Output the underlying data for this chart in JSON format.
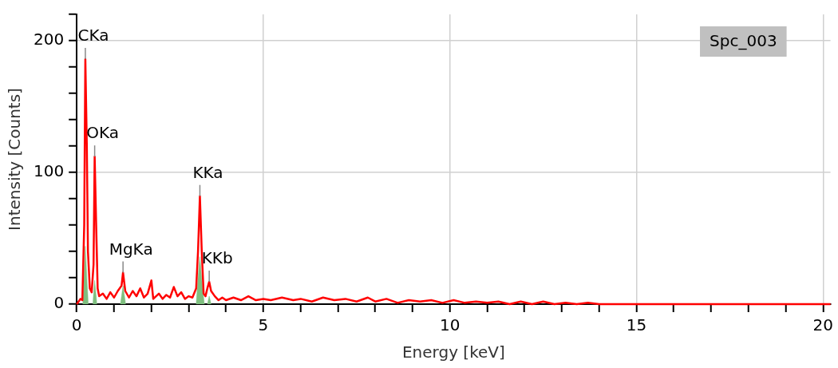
{
  "chart_data": {
    "type": "line",
    "xlabel": "Energy [keV]",
    "ylabel": "Intensity [Counts]",
    "xlim": [
      0,
      20.2
    ],
    "ylim": [
      0,
      220
    ],
    "xticks": [
      0,
      {
        "value": 1,
        "label": null
      },
      {
        "value": 2,
        "label": null
      },
      {
        "value": 3,
        "label": null
      },
      {
        "value": 4,
        "label": null
      },
      5,
      {
        "value": 6,
        "label": null
      },
      {
        "value": 7,
        "label": null
      },
      {
        "value": 8,
        "label": null
      },
      {
        "value": 9,
        "label": null
      },
      10,
      {
        "value": 11,
        "label": null
      },
      {
        "value": 12,
        "label": null
      },
      {
        "value": 13,
        "label": null
      },
      {
        "value": 14,
        "label": null
      },
      15,
      {
        "value": 16,
        "label": null
      },
      {
        "value": 17,
        "label": null
      },
      {
        "value": 18,
        "label": null
      },
      {
        "value": 19,
        "label": null
      },
      20
    ],
    "yticks": [
      0,
      {
        "value": 20,
        "label": null
      },
      {
        "value": 40,
        "label": null
      },
      {
        "value": 60,
        "label": null
      },
      {
        "value": 80,
        "label": null
      },
      100,
      {
        "value": 120,
        "label": null
      },
      {
        "value": 140,
        "label": null
      },
      {
        "value": 160,
        "label": null
      },
      {
        "value": 180,
        "label": null
      },
      200,
      {
        "value": 220,
        "label": null
      }
    ],
    "grid": true,
    "legend": false,
    "marker": "none",
    "line_style": "solid",
    "series": [
      {
        "color": "#ff0000",
        "x": [
          0,
          0.05,
          0.1,
          0.15,
          0.2,
          0.23,
          0.27,
          0.3,
          0.35,
          0.4,
          0.45,
          0.48,
          0.52,
          0.56,
          0.6,
          0.7,
          0.8,
          0.9,
          1.0,
          1.1,
          1.2,
          1.24,
          1.3,
          1.4,
          1.5,
          1.6,
          1.7,
          1.8,
          1.9,
          2.0,
          2.05,
          2.2,
          2.3,
          2.4,
          2.5,
          2.6,
          2.7,
          2.8,
          2.9,
          3.0,
          3.1,
          3.2,
          3.25,
          3.3,
          3.35,
          3.4,
          3.45,
          3.5,
          3.55,
          3.6,
          3.7,
          3.8,
          3.9,
          4.0,
          4.2,
          4.4,
          4.6,
          4.8,
          5.0,
          5.2,
          5.5,
          5.8,
          6.0,
          6.3,
          6.6,
          6.9,
          7.2,
          7.5,
          7.8,
          8.0,
          8.3,
          8.6,
          8.9,
          9.2,
          9.5,
          9.8,
          10.1,
          10.4,
          10.7,
          11.0,
          11.3,
          11.6,
          11.9,
          12.2,
          12.5,
          12.8,
          13.1,
          13.4,
          13.7,
          14.0,
          20.2
        ],
        "values": [
          0,
          2,
          4,
          3,
          60,
          186,
          120,
          40,
          12,
          9,
          30,
          112,
          60,
          12,
          6,
          8,
          4,
          9,
          5,
          10,
          14,
          24,
          10,
          5,
          10,
          6,
          12,
          5,
          8,
          18,
          4,
          8,
          4,
          7,
          5,
          13,
          6,
          9,
          4,
          6,
          5,
          12,
          40,
          82,
          40,
          8,
          6,
          12,
          17,
          10,
          6,
          3,
          5,
          3,
          5,
          3,
          6,
          3,
          4,
          3,
          5,
          3,
          4,
          2,
          5,
          3,
          4,
          2,
          5,
          2,
          4,
          1,
          3,
          2,
          3,
          1,
          3,
          1,
          2,
          1,
          2,
          0,
          2,
          0,
          2,
          0,
          1,
          0,
          1,
          0,
          0
        ]
      },
      {
        "type": "area",
        "color": "#7fbf7f",
        "x": [
          0.16,
          0.2,
          0.23,
          0.27,
          0.31,
          0.33,
          0.43,
          0.48,
          0.54,
          0.6,
          1.17,
          1.24,
          1.31,
          1.4,
          3.2,
          3.25,
          3.3,
          3.36,
          3.42,
          3.45,
          3.5,
          3.55,
          3.6
        ],
        "values": [
          0,
          25,
          44,
          20,
          0,
          null,
          0,
          18,
          0,
          null,
          0,
          14,
          0,
          null,
          0,
          20,
          36,
          15,
          0,
          null,
          0,
          6,
          0
        ]
      }
    ],
    "annotations": [
      {
        "text": "CKa",
        "x": 0.23,
        "y": 186
      },
      {
        "text": "OKa",
        "x": 0.48,
        "y": 112
      },
      {
        "text": "MgKa",
        "x": 1.24,
        "y": 24
      },
      {
        "text": "KKa",
        "x": 3.3,
        "y": 82
      },
      {
        "text": "KKb",
        "x": 3.55,
        "y": 17
      },
      "Spc_003"
    ]
  }
}
